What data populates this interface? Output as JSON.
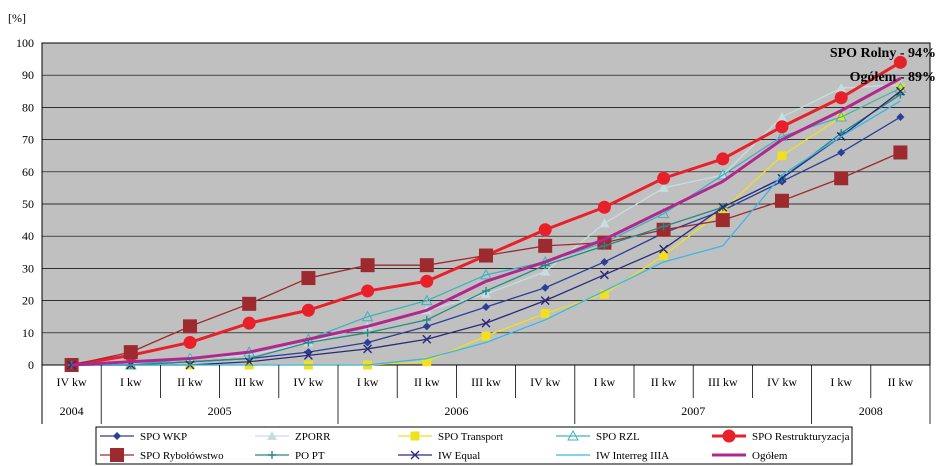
{
  "chart_data": {
    "type": "line",
    "ylabel": "[%]",
    "ylim": [
      0,
      100
    ],
    "yticks": [
      0,
      10,
      20,
      30,
      40,
      50,
      60,
      70,
      80,
      90,
      100
    ],
    "grid": true,
    "categories": [
      "IV kw",
      "I kw",
      "II kw",
      "III kw",
      "IV kw",
      "I kw",
      "II kw",
      "III kw",
      "IV kw",
      "I kw",
      "II kw",
      "III kw",
      "IV kw",
      "I kw",
      "II kw"
    ],
    "years": [
      {
        "label": "2004",
        "count": 1
      },
      {
        "label": "2005",
        "count": 4
      },
      {
        "label": "2006",
        "count": 4
      },
      {
        "label": "2007",
        "count": 4
      },
      {
        "label": "2008",
        "count": 2
      }
    ],
    "annotations": [
      "SPO Rolny - 94%",
      "Ogółem - 89%"
    ],
    "legend_position": "bottom",
    "series": [
      {
        "name": "SPO WKP",
        "color": "#2b3f99",
        "marker": "diamond",
        "width": 1.3,
        "values": [
          0,
          0,
          1,
          2,
          4,
          7,
          12,
          18,
          24,
          32,
          41,
          48,
          57,
          66,
          77
        ]
      },
      {
        "name": "ZPORR",
        "color": "#c6dde2",
        "marker": "triangle",
        "width": 1.3,
        "values": [
          0,
          1,
          2,
          3,
          7,
          12,
          17,
          22,
          29,
          44,
          55,
          59,
          77,
          86,
          87
        ]
      },
      {
        "name": "SPO Transport",
        "color": "#f0e020",
        "marker": "square",
        "width": 1.3,
        "values": [
          0,
          0,
          0,
          0,
          0,
          0,
          1,
          9,
          16,
          22,
          34,
          48,
          65,
          77,
          86
        ]
      },
      {
        "name": "SPO RZL",
        "color": "#3fb3bd",
        "marker": "triangle-open",
        "width": 1.3,
        "values": [
          0,
          0,
          2,
          4,
          8,
          15,
          20,
          28,
          32,
          38,
          47,
          59,
          71,
          77,
          86
        ]
      },
      {
        "name": "SPO Restrukturyzacja",
        "color": "#e8202a",
        "marker": "circle",
        "width": 3,
        "values": [
          0,
          3,
          7,
          13,
          17,
          23,
          26,
          34,
          42,
          49,
          58,
          64,
          74,
          83,
          94
        ]
      },
      {
        "name": "SPO Rybołówstwo",
        "color": "#9d2a2f",
        "marker": "square",
        "width": 1.3,
        "values": [
          0,
          4,
          12,
          19,
          27,
          31,
          31,
          34,
          37,
          38,
          42,
          45,
          51,
          58,
          66
        ]
      },
      {
        "name": "PO PT",
        "color": "#238a86",
        "marker": "plus",
        "width": 1.3,
        "values": [
          0,
          0,
          1,
          2,
          7,
          10,
          14,
          23,
          31,
          37,
          43,
          49,
          58,
          72,
          84
        ]
      },
      {
        "name": "IW Equal",
        "color": "#2a2a7a",
        "marker": "x",
        "width": 1.3,
        "values": [
          0,
          0,
          0,
          1,
          3,
          5,
          8,
          13,
          20,
          28,
          36,
          49,
          58,
          71,
          85
        ]
      },
      {
        "name": "IW Interreg IIIA",
        "color": "#39b7e8",
        "marker": "none",
        "width": 1.3,
        "values": [
          0,
          0,
          0,
          0,
          0,
          0,
          2,
          7,
          14,
          23,
          32,
          37,
          59,
          71,
          82
        ]
      },
      {
        "name": "Ogółem",
        "color": "#b0288f",
        "marker": "none",
        "width": 3,
        "values": [
          0,
          1,
          2,
          4,
          8,
          12,
          17,
          26,
          32,
          39,
          48,
          57,
          70,
          79,
          89
        ]
      }
    ]
  }
}
